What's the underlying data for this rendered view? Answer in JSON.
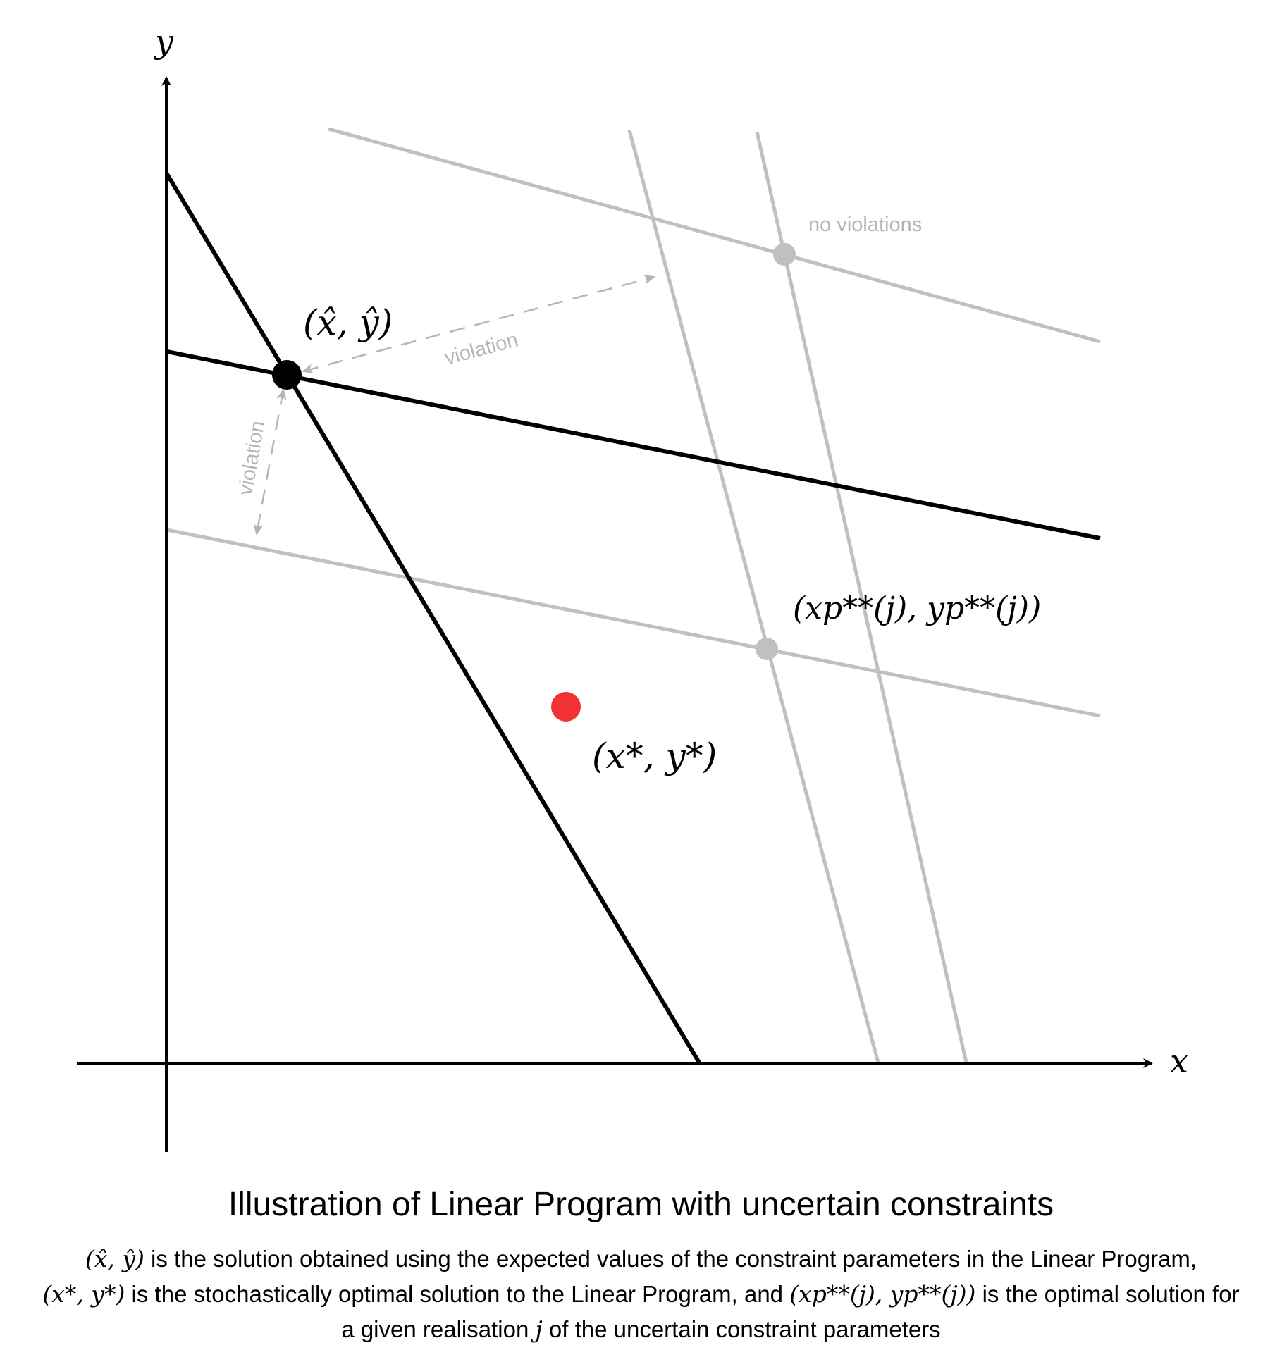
{
  "axes": {
    "x_label": "x",
    "y_label": "y"
  },
  "annotations": {
    "no_violations": "no violations",
    "violation_diagonal": "violation",
    "violation_vertical": "violation"
  },
  "points": {
    "expected_solution_label": "(x̂, ŷ)",
    "optimal_solution_label": "(x*, y*)",
    "realisation_solution_label": "(xp**(j), yp**(j))"
  },
  "colors": {
    "deterministic_constraint": "#000000",
    "uncertain_constraint": "#c0c0c0",
    "optimal_point": "#f03232",
    "annotation_text": "#b5b5b5"
  },
  "caption": {
    "title": "Illustration of Linear Program with uncertain constraints",
    "line1_math": "(x̂, ŷ)",
    "line1_text": " is the solution obtained using the expected values of the constraint parameters in the Linear Program,",
    "line2_math_a": "(x*, y*)",
    "line2_text_a": " is the stochastically optimal solution to the Linear Program, and ",
    "line2_math_b": "(xp**(j), yp**(j))",
    "line2_text_b": " is the optimal solution for",
    "line3_text_a": "a given realisation ",
    "line3_math": "j",
    "line3_text_b": " of the uncertain constraint parameters"
  }
}
